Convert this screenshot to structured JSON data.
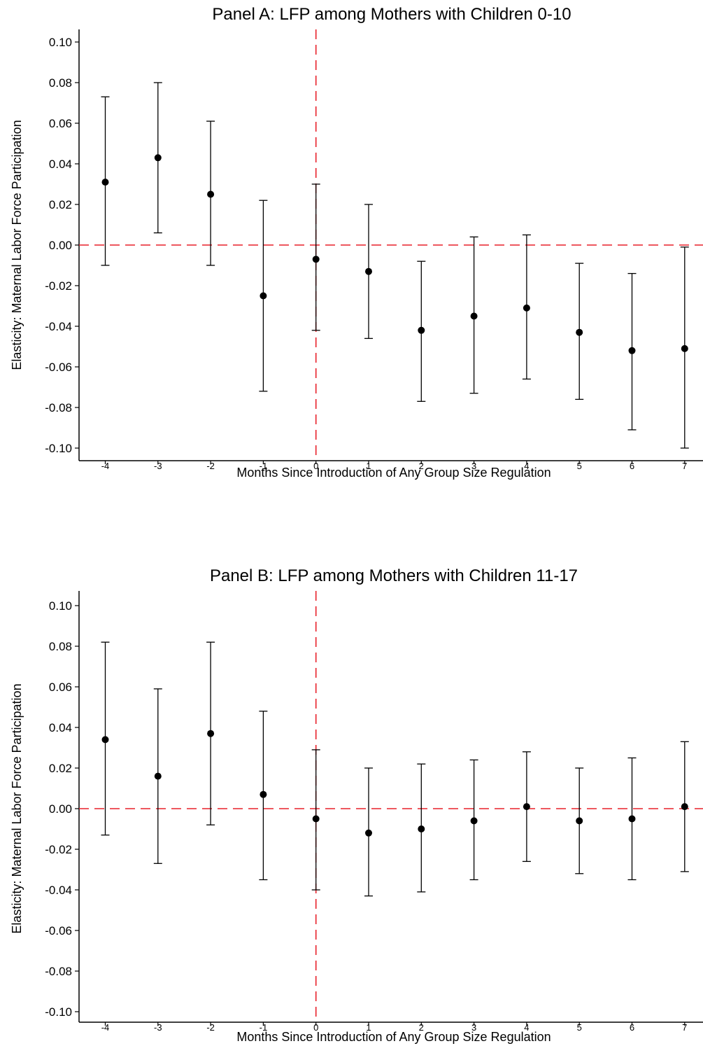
{
  "style": {
    "point_color": "#000000",
    "errorbar_color": "#000000",
    "reference_line_color": "#e8202a",
    "axis_color": "#000000"
  },
  "chart_data": [
    {
      "type": "scatter",
      "title": "Panel A: LFP among Mothers with Children 0-10",
      "xlabel": "Months Since Introduction of Any Group Size Regulation",
      "ylabel": "Elasticity: Maternal Labor Force Participation",
      "ylim": [
        -0.105,
        0.105
      ],
      "xlim": [
        -5,
        7.38
      ],
      "y_ticks": [
        0.1,
        0.08,
        0.06,
        0.04,
        0.02,
        0.0,
        -0.02,
        -0.04,
        -0.06,
        -0.08,
        -0.1
      ],
      "y_tick_labels": [
        "0.10",
        "0.08",
        "0.06",
        "0.04",
        "0.02",
        "0.00",
        "-0.02",
        "-0.04",
        "-0.06",
        "-0.08",
        "-0.10"
      ],
      "x_tick_labels": [
        "-4",
        "-3",
        "-2",
        "-1",
        "0",
        "1",
        "2",
        "3",
        "4",
        "5",
        "6",
        "7"
      ],
      "grid": false,
      "reference_lines": {
        "y": 0,
        "x": 0
      },
      "x": [
        -4,
        -3,
        -2,
        -1,
        0,
        1,
        2,
        3,
        4,
        5,
        6,
        7
      ],
      "estimate": [
        0.031,
        0.043,
        0.025,
        -0.025,
        -0.007,
        -0.013,
        -0.042,
        -0.035,
        -0.031,
        -0.043,
        -0.052,
        -0.051
      ],
      "ci_lower": [
        -0.01,
        0.006,
        -0.01,
        -0.072,
        -0.042,
        -0.046,
        -0.077,
        -0.073,
        -0.066,
        -0.076,
        -0.091,
        -0.1
      ],
      "ci_upper": [
        0.073,
        0.08,
        0.061,
        0.022,
        0.03,
        0.02,
        -0.008,
        0.004,
        0.005,
        -0.009,
        -0.014,
        -0.001
      ]
    },
    {
      "type": "scatter",
      "title": "Panel B: LFP among Mothers with Children 11-17",
      "xlabel": "Months Since Introduction of Any Group Size Regulation",
      "ylabel": "Elasticity: Maternal Labor Force Participation",
      "ylim": [
        -0.105,
        0.105
      ],
      "xlim": [
        -5,
        7.38
      ],
      "y_ticks": [
        0.1,
        0.08,
        0.06,
        0.04,
        0.02,
        0.0,
        -0.02,
        -0.04,
        -0.06,
        -0.08,
        -0.1
      ],
      "y_tick_labels": [
        "0.10",
        "0.08",
        "0.06",
        "0.04",
        "0.02",
        "0.00",
        "-0.02",
        "-0.04",
        "-0.06",
        "-0.08",
        "-0.10"
      ],
      "x_tick_labels": [
        "-4",
        "-3",
        "-2",
        "-1",
        "0",
        "1",
        "2",
        "3",
        "4",
        "5",
        "6",
        "7"
      ],
      "grid": false,
      "reference_lines": {
        "y": 0,
        "x": 0
      },
      "x": [
        -4,
        -3,
        -2,
        -1,
        0,
        1,
        2,
        3,
        4,
        5,
        6,
        7
      ],
      "estimate": [
        0.034,
        0.016,
        0.037,
        0.007,
        -0.005,
        -0.012,
        -0.01,
        -0.006,
        0.001,
        -0.006,
        -0.005,
        0.001
      ],
      "ci_lower": [
        -0.013,
        -0.027,
        -0.008,
        -0.035,
        -0.04,
        -0.043,
        -0.041,
        -0.035,
        -0.026,
        -0.032,
        -0.035,
        -0.031
      ],
      "ci_upper": [
        0.082,
        0.059,
        0.082,
        0.048,
        0.029,
        0.02,
        0.022,
        0.024,
        0.028,
        0.02,
        0.025,
        0.033
      ]
    }
  ]
}
